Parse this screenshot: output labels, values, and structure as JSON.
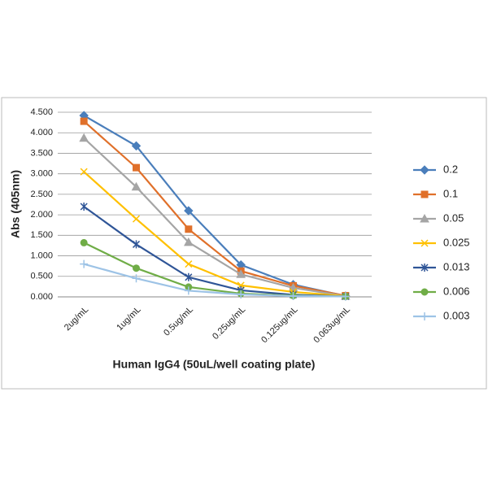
{
  "chart_data": {
    "type": "line",
    "x_label": "Human IgG4 (50uL/well coating plate)",
    "y_label": "Abs (405nm)",
    "categories": [
      "2ug/mL",
      "1ug/mL",
      "0.5ug/mL",
      "0.25ug/mL",
      "0.125ug/mL",
      "0.063ug/mL"
    ],
    "ylim": [
      0,
      4.5
    ],
    "yticks": [
      {
        "value": 0,
        "label": "0.000"
      },
      {
        "value": 0.5,
        "label": "0.500"
      },
      {
        "value": 1,
        "label": "1.000"
      },
      {
        "value": 1.5,
        "label": "1.500"
      },
      {
        "value": 2,
        "label": "2.000"
      },
      {
        "value": 2.5,
        "label": "2.500"
      },
      {
        "value": 3,
        "label": "3.000"
      },
      {
        "value": 3.5,
        "label": "3.500"
      },
      {
        "value": 4,
        "label": "4.000"
      },
      {
        "value": 4.5,
        "label": "4.500"
      }
    ],
    "grid": true,
    "legend": "right",
    "series": [
      {
        "name": "0.2",
        "color": "#4a7ebb",
        "marker": "diamond",
        "values": [
          4.42,
          3.68,
          2.1,
          0.78,
          0.3,
          0.02
        ]
      },
      {
        "name": "0.1",
        "color": "#e0702a",
        "marker": "square",
        "values": [
          4.28,
          3.15,
          1.65,
          0.63,
          0.27,
          0.03
        ]
      },
      {
        "name": "0.05",
        "color": "#a5a5a5",
        "marker": "triangle",
        "values": [
          3.87,
          2.68,
          1.33,
          0.55,
          0.22,
          0.02
        ]
      },
      {
        "name": "0.025",
        "color": "#ffc000",
        "marker": "x",
        "values": [
          3.05,
          1.9,
          0.8,
          0.28,
          0.12,
          0.02
        ]
      },
      {
        "name": "0.013",
        "color": "#2f5597",
        "marker": "star",
        "values": [
          2.2,
          1.28,
          0.48,
          0.16,
          0.05,
          0.01
        ]
      },
      {
        "name": "0.006",
        "color": "#70ad47",
        "marker": "circle",
        "values": [
          1.32,
          0.7,
          0.24,
          0.08,
          0.03,
          0.01
        ]
      },
      {
        "name": "0.003",
        "color": "#9dc3e6",
        "marker": "plus",
        "values": [
          0.8,
          0.45,
          0.15,
          0.06,
          0.02,
          0.01
        ]
      }
    ]
  }
}
